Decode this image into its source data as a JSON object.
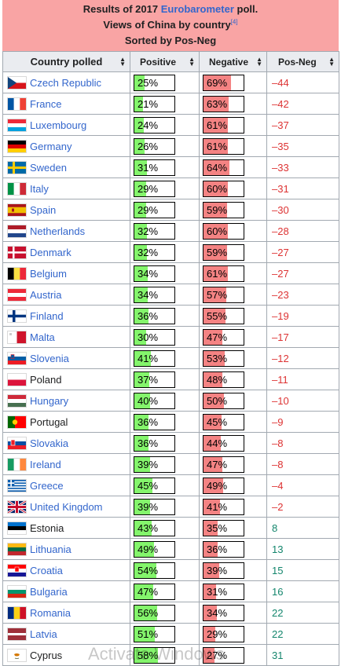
{
  "caption": {
    "line1_prefix": "Results of 2017 ",
    "line1_link": "Eurobarometer",
    "line1_suffix": " poll.",
    "line2": "Views of China by country",
    "line2_ref": "[4]",
    "line3": "Sorted by Pos-Neg"
  },
  "headers": [
    "Country polled",
    "Positive",
    "Negative",
    "Pos-Neg"
  ],
  "colors": {
    "positive_fill": "#84f56c",
    "negative_fill": "#f48383",
    "negative_text": "#dd3333",
    "positive_text": "#14866d",
    "caption_bg": "#f9a4a4"
  },
  "rows": [
    {
      "country": "Czech Republic",
      "flag": "czech-flag-icon",
      "positive": "25%",
      "negative": "69%",
      "diff": "–44",
      "pos_val": 25,
      "neg_val": 69,
      "link": true
    },
    {
      "country": "France",
      "flag": "france-flag-icon",
      "positive": "21%",
      "negative": "63%",
      "diff": "–42",
      "pos_val": 21,
      "neg_val": 63,
      "link": true
    },
    {
      "country": "Luxembourg",
      "flag": "luxembourg-flag-icon",
      "positive": "24%",
      "negative": "61%",
      "diff": "–37",
      "pos_val": 24,
      "neg_val": 61,
      "link": true
    },
    {
      "country": "Germany",
      "flag": "germany-flag-icon",
      "positive": "26%",
      "negative": "61%",
      "diff": "–35",
      "pos_val": 26,
      "neg_val": 61,
      "link": true
    },
    {
      "country": "Sweden",
      "flag": "sweden-flag-icon",
      "positive": "31%",
      "negative": "64%",
      "diff": "–33",
      "pos_val": 31,
      "neg_val": 64,
      "link": true
    },
    {
      "country": "Italy",
      "flag": "italy-flag-icon",
      "positive": "29%",
      "negative": "60%",
      "diff": "–31",
      "pos_val": 29,
      "neg_val": 60,
      "link": true
    },
    {
      "country": "Spain",
      "flag": "spain-flag-icon",
      "positive": "29%",
      "negative": "59%",
      "diff": "–30",
      "pos_val": 29,
      "neg_val": 59,
      "link": true
    },
    {
      "country": "Netherlands",
      "flag": "netherlands-flag-icon",
      "positive": "32%",
      "negative": "60%",
      "diff": "–28",
      "pos_val": 32,
      "neg_val": 60,
      "link": true
    },
    {
      "country": "Denmark",
      "flag": "denmark-flag-icon",
      "positive": "32%",
      "negative": "59%",
      "diff": "–27",
      "pos_val": 32,
      "neg_val": 59,
      "link": true
    },
    {
      "country": "Belgium",
      "flag": "belgium-flag-icon",
      "positive": "34%",
      "negative": "61%",
      "diff": "–27",
      "pos_val": 34,
      "neg_val": 61,
      "link": true
    },
    {
      "country": "Austria",
      "flag": "austria-flag-icon",
      "positive": "34%",
      "negative": "57%",
      "diff": "–23",
      "pos_val": 34,
      "neg_val": 57,
      "link": true
    },
    {
      "country": "Finland",
      "flag": "finland-flag-icon",
      "positive": "36%",
      "negative": "55%",
      "diff": "–19",
      "pos_val": 36,
      "neg_val": 55,
      "link": true
    },
    {
      "country": "Malta",
      "flag": "malta-flag-icon",
      "positive": "30%",
      "negative": "47%",
      "diff": "–17",
      "pos_val": 30,
      "neg_val": 47,
      "link": true
    },
    {
      "country": "Slovenia",
      "flag": "slovenia-flag-icon",
      "positive": "41%",
      "negative": "53%",
      "diff": "–12",
      "pos_val": 41,
      "neg_val": 53,
      "link": true
    },
    {
      "country": "Poland",
      "flag": "poland-flag-icon",
      "positive": "37%",
      "negative": "48%",
      "diff": "–11",
      "pos_val": 37,
      "neg_val": 48,
      "link": false
    },
    {
      "country": "Hungary",
      "flag": "hungary-flag-icon",
      "positive": "40%",
      "negative": "50%",
      "diff": "–10",
      "pos_val": 40,
      "neg_val": 50,
      "link": true
    },
    {
      "country": "Portugal",
      "flag": "portugal-flag-icon",
      "positive": "36%",
      "negative": "45%",
      "diff": "–9",
      "pos_val": 36,
      "neg_val": 45,
      "link": false
    },
    {
      "country": "Slovakia",
      "flag": "slovakia-flag-icon",
      "positive": "36%",
      "negative": "44%",
      "diff": "–8",
      "pos_val": 36,
      "neg_val": 44,
      "link": true
    },
    {
      "country": "Ireland",
      "flag": "ireland-flag-icon",
      "positive": "39%",
      "negative": "47%",
      "diff": "–8",
      "pos_val": 39,
      "neg_val": 47,
      "link": true
    },
    {
      "country": "Greece",
      "flag": "greece-flag-icon",
      "positive": "45%",
      "negative": "49%",
      "diff": "–4",
      "pos_val": 45,
      "neg_val": 49,
      "link": true
    },
    {
      "country": "United Kingdom",
      "flag": "uk-flag-icon",
      "positive": "39%",
      "negative": "41%",
      "diff": "–2",
      "pos_val": 39,
      "neg_val": 41,
      "link": true
    },
    {
      "country": "Estonia",
      "flag": "estonia-flag-icon",
      "positive": "43%",
      "negative": "35%",
      "diff": "8",
      "pos_val": 43,
      "neg_val": 35,
      "link": false
    },
    {
      "country": "Lithuania",
      "flag": "lithuania-flag-icon",
      "positive": "49%",
      "negative": "36%",
      "diff": "13",
      "pos_val": 49,
      "neg_val": 36,
      "link": true
    },
    {
      "country": "Croatia",
      "flag": "croatia-flag-icon",
      "positive": "54%",
      "negative": "39%",
      "diff": "15",
      "pos_val": 54,
      "neg_val": 39,
      "link": true
    },
    {
      "country": "Bulgaria",
      "flag": "bulgaria-flag-icon",
      "positive": "47%",
      "negative": "31%",
      "diff": "16",
      "pos_val": 47,
      "neg_val": 31,
      "link": true
    },
    {
      "country": "Romania",
      "flag": "romania-flag-icon",
      "positive": "56%",
      "negative": "34%",
      "diff": "22",
      "pos_val": 56,
      "neg_val": 34,
      "link": true
    },
    {
      "country": "Latvia",
      "flag": "latvia-flag-icon",
      "positive": "51%",
      "negative": "29%",
      "diff": "22",
      "pos_val": 51,
      "neg_val": 29,
      "link": true
    },
    {
      "country": "Cyprus",
      "flag": "cyprus-flag-icon",
      "positive": "58%",
      "negative": "27%",
      "diff": "31",
      "pos_val": 58,
      "neg_val": 27,
      "link": false
    }
  ],
  "watermark": "Activate Windows"
}
